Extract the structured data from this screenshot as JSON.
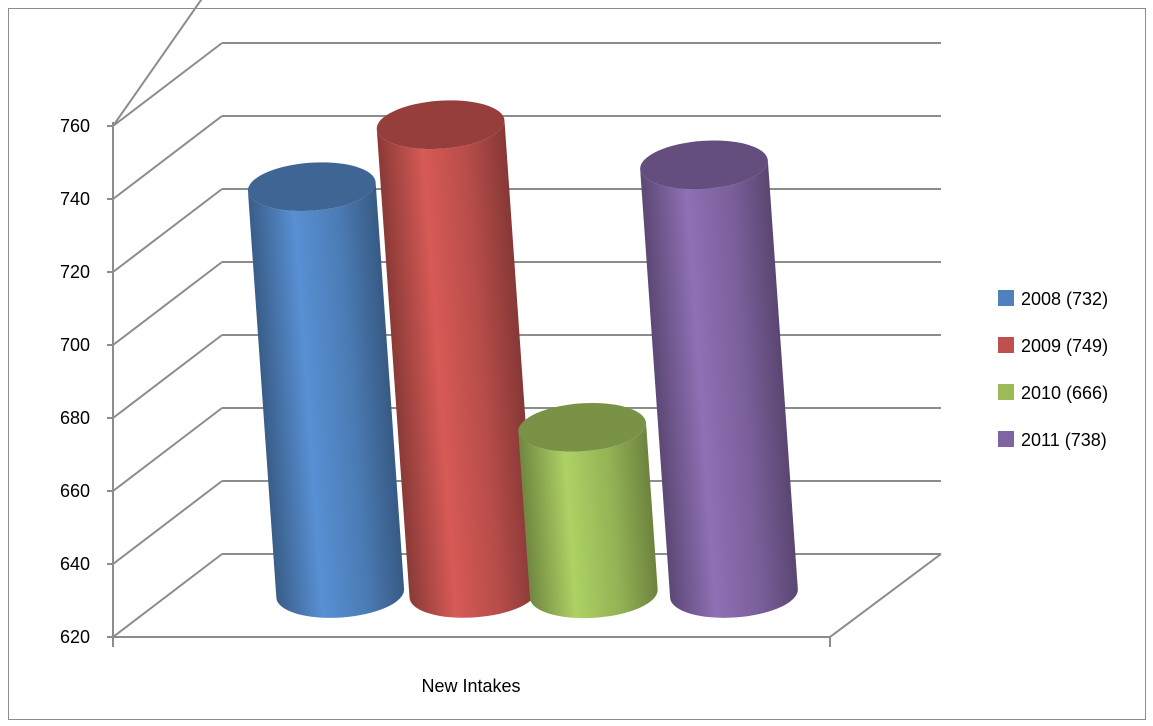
{
  "chart_data": {
    "type": "bar",
    "variant": "3d-cylinder",
    "title": "",
    "xlabel": "",
    "ylabel": "",
    "categories": [
      "New Intakes"
    ],
    "series": [
      {
        "name": "2008 (732)",
        "values": [
          732
        ],
        "color": "#4f81bd"
      },
      {
        "name": "2009 (749)",
        "values": [
          749
        ],
        "color": "#c0504d"
      },
      {
        "name": "2010 (666)",
        "values": [
          666
        ],
        "color": "#9bbb59"
      },
      {
        "name": "2011 (738)",
        "values": [
          738
        ],
        "color": "#8064a2"
      }
    ],
    "ylim": [
      620,
      760
    ],
    "yticks": [
      620,
      640,
      660,
      680,
      700,
      720,
      740,
      760
    ],
    "grid": true,
    "legend_position": "right"
  }
}
